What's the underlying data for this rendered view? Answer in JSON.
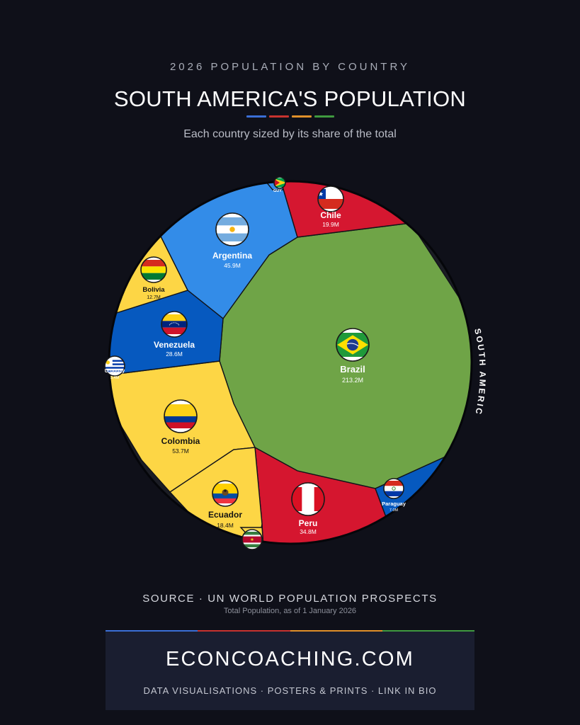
{
  "header": {
    "kicker": "2026 POPULATION BY COUNTRY",
    "title": "SOUTH AMERICA'S POPULATION",
    "subtitle": "Each country sized by its share of the total",
    "accent_colors": [
      "#3b6fd6",
      "#c8332f",
      "#e0902a",
      "#3f9a3f"
    ]
  },
  "chart_data": {
    "type": "voronoi-treemap",
    "region_label": "SOUTH AMERICA",
    "unit": "M",
    "items": [
      {
        "country": "Brazil",
        "value": 213.2,
        "label": "213.2M",
        "color": "#6fa447",
        "flag": "brazil-flag"
      },
      {
        "country": "Colombia",
        "value": 53.7,
        "label": "53.7M",
        "color": "#fdd645",
        "flag": "colombia-flag"
      },
      {
        "country": "Argentina",
        "value": 45.9,
        "label": "45.9M",
        "color": "#338ce8",
        "flag": "argentina-flag"
      },
      {
        "country": "Peru",
        "value": 34.8,
        "label": "34.8M",
        "color": "#d5162f",
        "flag": "peru-flag"
      },
      {
        "country": "Venezuela",
        "value": 28.6,
        "label": "28.6M",
        "color": "#0659bf",
        "flag": "venezuela-flag"
      },
      {
        "country": "Chile",
        "value": 19.9,
        "label": "19.9M",
        "color": "#d51730",
        "flag": "chile-flag"
      },
      {
        "country": "Ecuador",
        "value": 18.4,
        "label": "18.4M",
        "color": "#fdd645",
        "flag": "ecuador-flag"
      },
      {
        "country": "Bolivia",
        "value": 12.7,
        "label": "12.7M",
        "color": "#fdd645",
        "flag": "bolivia-flag"
      },
      {
        "country": "Paraguay",
        "value": 7.0,
        "label": "7.0M",
        "color": "#0659bf",
        "flag": "paraguay-flag"
      },
      {
        "country": "Uruguay",
        "value": 3.4,
        "label": "3.4M",
        "color": "#338ce8",
        "flag": "uruguay-flag"
      },
      {
        "country": "Guyana",
        "value": 0.8,
        "label": "GUY",
        "color": "#338ce8",
        "flag": "guyana-flag"
      },
      {
        "country": "Suriname",
        "value": 0.6,
        "label": "",
        "color": "#fdd645",
        "flag": "suriname-flag"
      }
    ]
  },
  "source": {
    "line": "SOURCE · UN WORLD POPULATION PROSPECTS",
    "note": "Total Population, as of 1 January 2026"
  },
  "footer": {
    "site": "ECONCOACHING.COM",
    "tagline": "DATA VISUALISATIONS · POSTERS & PRINTS · LINK IN BIO"
  }
}
